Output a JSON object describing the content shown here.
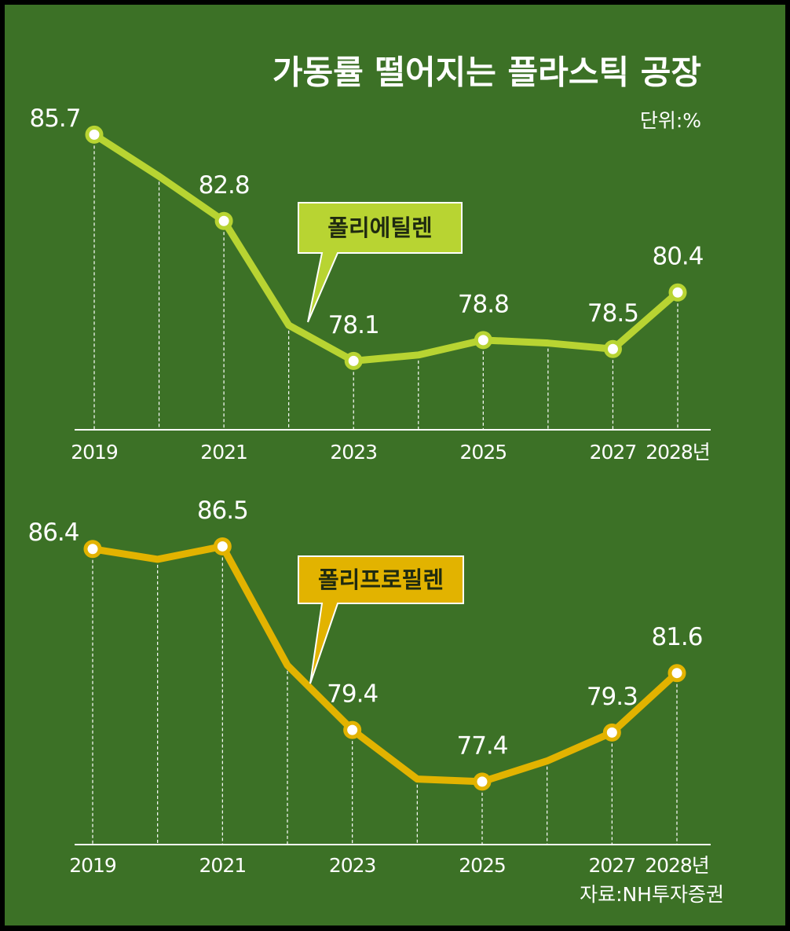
{
  "title": "가동률 떨어지는 플라스틱 공장",
  "unit": "단위:%",
  "source": "자료:NH투자증권",
  "chart_data": [
    {
      "type": "line",
      "categories": [
        "2019",
        null,
        "2021",
        null,
        "2023",
        null,
        "2025",
        null,
        "2027",
        "2028년"
      ],
      "series": [
        {
          "name": "폴리에틸렌",
          "color": "#b8d432",
          "values": [
            85.7,
            84.3,
            82.8,
            79.3,
            78.1,
            78.3,
            78.8,
            78.7,
            78.5,
            80.4
          ]
        }
      ],
      "ylim": [
        76,
        86
      ]
    },
    {
      "type": "line",
      "categories": [
        "2019",
        null,
        "2021",
        null,
        "2023",
        null,
        "2025",
        null,
        "2027",
        "2028년"
      ],
      "series": [
        {
          "name": "폴리프로필렌",
          "color": "#e2b300",
          "values": [
            86.4,
            86.0,
            86.5,
            81.9,
            79.4,
            77.5,
            77.4,
            78.2,
            79.3,
            81.6
          ]
        }
      ],
      "ylim": [
        76,
        87
      ]
    }
  ]
}
